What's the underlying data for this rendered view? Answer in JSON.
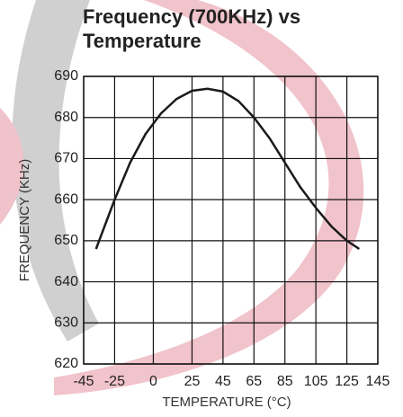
{
  "chart_data": {
    "type": "line",
    "title": [
      "Frequency (700KHz) vs",
      "Temperature"
    ],
    "x_label": "TEMPERATURE (°C)",
    "y_label": "FREQUENCY (KHz)",
    "series": [
      {
        "name": "Frequency",
        "color": "#1a1a1a",
        "x": [
          -37,
          -30,
          -25,
          -15,
          -5,
          5,
          15,
          25,
          35,
          45,
          55,
          65,
          75,
          85,
          95,
          105,
          115,
          125,
          133
        ],
        "values": [
          648,
          655,
          660,
          669,
          676,
          681,
          684.5,
          686.5,
          687,
          686.3,
          684,
          680,
          675,
          669,
          663,
          658,
          653.5,
          650,
          648
        ]
      }
    ],
    "xlim": [
      -45,
      145
    ],
    "xticks": [
      -45,
      -25,
      0,
      25,
      45,
      65,
      85,
      105,
      125,
      145
    ],
    "ylim": [
      620,
      690
    ],
    "yticks": [
      620,
      630,
      640,
      650,
      660,
      670,
      680,
      690
    ],
    "grid": true
  }
}
